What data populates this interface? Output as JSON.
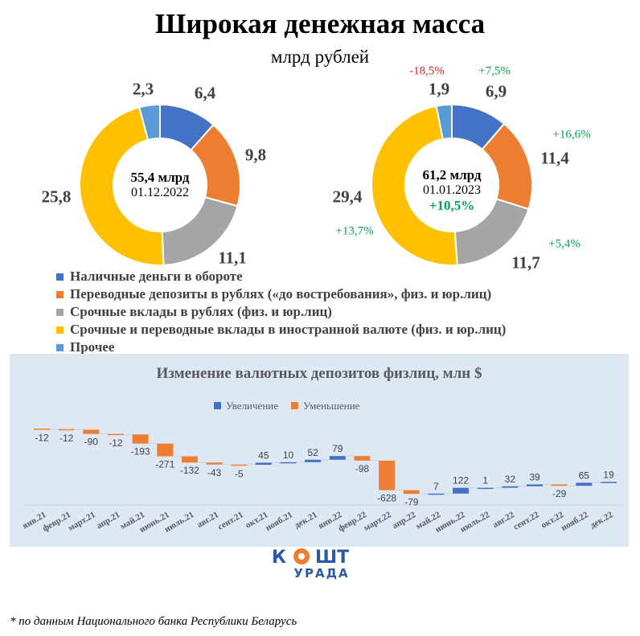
{
  "title": "Широкая денежная масса",
  "subtitle": "млрд рублей",
  "colors": {
    "cash": "#4472c4",
    "transfer": "#ed7d31",
    "term": "#a5a5a5",
    "foreign": "#ffc000",
    "other": "#5b9bd5",
    "increase_text": "#00a650",
    "decrease_text": "#e0222a"
  },
  "chart_data": [
    {
      "type": "pie",
      "donut": true,
      "center_total": "55,4 млрд",
      "center_date": "01.12.2022",
      "categories": [
        "Наличные деньги в обороте",
        "Переводные депозиты в рублях («до востребования», физ. и юр.лиц)",
        "Срочные вклады в рублях (физ. и юр.лиц)",
        "Срочные и переводные вклады в иностранной валюте (физ. и юр.лиц)",
        "Прочее"
      ],
      "values": [
        6.4,
        9.8,
        11.1,
        25.8,
        2.3
      ],
      "labels": [
        "6,4",
        "9,8",
        "11,1",
        "25,8",
        "2,3"
      ]
    },
    {
      "type": "pie",
      "donut": true,
      "center_total": "61,2 млрд",
      "center_date": "01.01.2023",
      "center_change": "+10,5%",
      "categories": [
        "Наличные деньги в обороте",
        "Переводные депозиты в рублях («до востребования», физ. и юр.лиц)",
        "Срочные вклады в рублях (физ. и юр.лиц)",
        "Срочные и переводные вклады в иностранной валюте (физ. и юр.лиц)",
        "Прочее"
      ],
      "values": [
        6.9,
        11.4,
        11.7,
        29.4,
        1.9
      ],
      "labels": [
        "6,9",
        "11,4",
        "11,7",
        "29,4",
        "1,9"
      ],
      "changes": [
        "+7,5%",
        "+16,6%",
        "+5,4%",
        "+13,7%",
        "-18,5%"
      ]
    },
    {
      "type": "waterfall",
      "title": "Изменение валютных депозитов физлиц, млн $",
      "legend": [
        "Увеличение",
        "Уменьшение"
      ],
      "legend_position": "top",
      "categories": [
        "янв.21",
        "февр.21",
        "март.21",
        "апр.21",
        "май.21",
        "июнь.21",
        "июль.21",
        "авг.21",
        "сент.21",
        "окт.21",
        "нояб.21",
        "дек.21",
        "янв.22",
        "февр.22",
        "март.22",
        "апр.22",
        "май.22",
        "июнь.22",
        "июль.22",
        "авг.22",
        "сент.22",
        "окт.22",
        "нояб.22",
        "дек.22"
      ],
      "values": [
        -12,
        -12,
        -90,
        -12,
        -193,
        -271,
        -132,
        -43,
        -5,
        45,
        10,
        52,
        79,
        -98,
        -628,
        -79,
        7,
        122,
        1,
        32,
        39,
        -29,
        65,
        19
      ],
      "ylim": [
        -1650,
        0
      ],
      "grid": false
    }
  ],
  "legend_items": [
    "Наличные деньги в обороте",
    "Переводные депозиты в рублях («до востребования», физ. и юр.лиц)",
    "Срочные вклады в рублях (физ. и юр.лиц)",
    "Срочные и переводные вклады в иностранной валюте (физ. и юр.лиц)",
    "Прочее"
  ],
  "logo": {
    "top": "КОШТ",
    "bottom": "УРАДА"
  },
  "footnote": "* по данным Национального банка Республики Беларусь"
}
